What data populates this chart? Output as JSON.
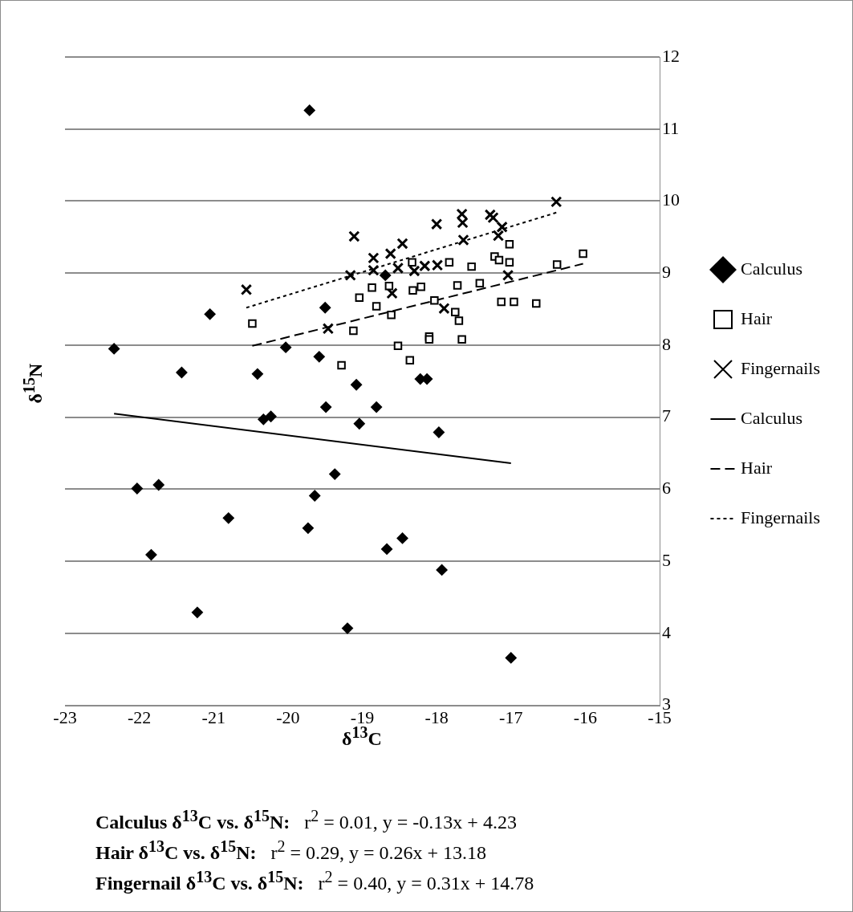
{
  "chart_data": {
    "type": "scatter",
    "xlabel": "δ$^{13}$C",
    "ylabel": "δ$^{15}$N",
    "xlim": [
      -23,
      -15
    ],
    "xticks": [
      -23,
      -22,
      -21,
      -20,
      -19,
      -18,
      -17,
      -16,
      -15
    ],
    "ylim": [
      3,
      12
    ],
    "yticks": [
      3,
      4,
      5,
      6,
      7,
      8,
      9,
      10,
      11,
      12
    ],
    "grid": "y",
    "legend": "right",
    "series": [
      {
        "name": "Calculus",
        "marker": "diamond",
        "color": "#000000",
        "x": [
          -22.34,
          -21.43,
          -20.41,
          -20.03,
          -19.58,
          -19.08,
          -19.49,
          -18.81,
          -20.33,
          -20.23,
          -19.04,
          -22.03,
          -21.74,
          -19.37,
          -19.64,
          -20.8,
          -19.73,
          -21.84,
          -21.22,
          -19.2,
          -18.22,
          -18.13,
          -17.97,
          -18.67,
          -18.46,
          -17.93,
          -17.0,
          -19.71,
          -21.05,
          -19.5,
          -18.69
        ],
        "values": [
          7.95,
          7.62,
          7.6,
          7.97,
          7.84,
          7.45,
          7.14,
          7.14,
          6.97,
          7.01,
          6.91,
          6.01,
          6.06,
          6.21,
          5.91,
          5.6,
          5.46,
          5.09,
          4.29,
          4.07,
          7.53,
          7.53,
          6.79,
          5.17,
          5.32,
          4.88,
          3.66,
          11.26,
          8.43,
          8.52,
          8.97
        ]
      },
      {
        "name": "Hair",
        "marker": "square",
        "color": "#000000",
        "x": [
          -20.48,
          -19.04,
          -18.87,
          -18.81,
          -19.12,
          -19.28,
          -18.64,
          -18.61,
          -18.33,
          -18.32,
          -18.21,
          -17.83,
          -17.53,
          -17.72,
          -17.42,
          -18.03,
          -17.75,
          -17.7,
          -18.52,
          -18.36,
          -18.1,
          -18.1,
          -17.66,
          -17.02,
          -17.22,
          -17.16,
          -17.02,
          -17.13,
          -16.96,
          -16.66,
          -16.38,
          -16.03
        ],
        "values": [
          8.3,
          8.66,
          8.8,
          8.54,
          8.2,
          7.72,
          8.82,
          8.42,
          9.15,
          8.76,
          8.81,
          9.15,
          9.09,
          8.83,
          8.86,
          8.62,
          8.46,
          8.34,
          7.99,
          7.79,
          8.12,
          8.08,
          8.08,
          9.4,
          9.23,
          9.18,
          9.15,
          8.6,
          8.6,
          8.58,
          9.12,
          9.27
        ]
      },
      {
        "name": "Fingernails",
        "marker": "cross",
        "color": "#000000",
        "x": [
          -20.56,
          -19.11,
          -19.16,
          -19.46,
          -18.85,
          -18.85,
          -18.62,
          -18.46,
          -18.52,
          -18.3,
          -18.6,
          -18.16,
          -17.99,
          -17.9,
          -18.0,
          -17.66,
          -17.65,
          -17.64,
          -17.28,
          -17.24,
          -17.12,
          -17.17,
          -17.04,
          -16.39
        ],
        "values": [
          8.77,
          9.51,
          8.97,
          8.23,
          9.21,
          9.04,
          9.27,
          9.41,
          9.07,
          9.03,
          8.72,
          9.1,
          9.11,
          8.51,
          9.68,
          9.82,
          9.7,
          9.46,
          9.81,
          9.77,
          9.64,
          9.52,
          8.97,
          9.99
        ]
      },
      {
        "name": "Calculus",
        "type": "line",
        "marker": "none",
        "line_style": "solid",
        "color": "#000000",
        "x": [
          -22.34,
          -17.0
        ],
        "values": [
          7.05,
          6.36
        ]
      },
      {
        "name": "Hair",
        "type": "line",
        "marker": "none",
        "line_style": "dashed",
        "color": "#000000",
        "x": [
          -20.48,
          -16.03
        ],
        "values": [
          7.99,
          9.13
        ]
      },
      {
        "name": "Fingernails",
        "type": "line",
        "marker": "none",
        "line_style": "dotted",
        "color": "#000000",
        "x": [
          -20.56,
          -16.39
        ],
        "values": [
          8.52,
          9.84
        ]
      }
    ],
    "annotations": [
      "Calculus δ$^{13}$C vs. δ$^{15}$N:   r$^{2}$ = 0.01, y = -0.13x + 4.23",
      "Hair δ$^{13}$C vs. δ$^{15}$N:   r$^{2}$ = 0.29, y = 0.26x + 13.18",
      "Fingernail δ$^{13}$C vs. δ$^{15}$N:   r$^{2}$ = 0.40, y = 0.31x + 14.78"
    ]
  }
}
